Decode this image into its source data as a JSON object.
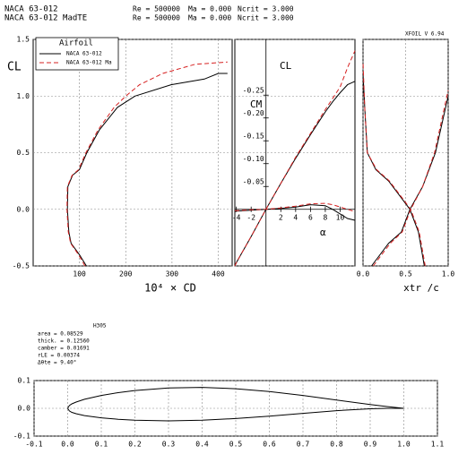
{
  "header": {
    "lines": [
      {
        "color": "#000000",
        "items": [
          "NACA 63-012",
          "Re = 500000",
          "Ma = 0.000",
          "Ncrit = 3.000"
        ]
      },
      {
        "color": "#d62020",
        "items": [
          "NACA 63-012 MadTE",
          "Re = 500000",
          "Ma = 0.000",
          "Ncrit = 3.000"
        ]
      }
    ],
    "version": "XFOIL V 6.94"
  },
  "chart_data": [
    {
      "type": "line",
      "xlabel": "10⁴ × CD",
      "ylabel": "CL",
      "xlim": [
        0,
        430
      ],
      "ylim": [
        -0.5,
        1.5
      ],
      "xticks": [
        100,
        200,
        300,
        400
      ],
      "yticks": [
        {
          "value": -0.5,
          "label": "-0.5"
        },
        {
          "value": 0,
          "label": "0.0"
        },
        {
          "value": 0.5,
          "label": "0.5"
        },
        {
          "value": 1,
          "label": "1.0"
        },
        {
          "value": 1.5,
          "label": "1.5"
        }
      ],
      "grid": true,
      "legend": "upper left",
      "legend_title": "Airfoil",
      "series": [
        {
          "name": "NACA 63-012",
          "color": "#000000",
          "dashed": false,
          "x": [
            115,
            100,
            82,
            77,
            74,
            75,
            85,
            100,
            116,
            143,
            182,
            220,
            298,
            370,
            400,
            420
          ],
          "values": [
            -0.5,
            -0.4,
            -0.3,
            -0.2,
            0,
            0.2,
            0.3,
            0.35,
            0.5,
            0.7,
            0.9,
            1.0,
            1.1,
            1.15,
            1.2,
            1.2
          ]
        },
        {
          "name": "NACA 63-012 Ma",
          "color": "#d62020",
          "dashed": true,
          "x": [
            112,
            98,
            81,
            76,
            73,
            74,
            84,
            98,
            114,
            140,
            175,
            200,
            230,
            280,
            350,
            420
          ],
          "values": [
            -0.5,
            -0.4,
            -0.3,
            -0.2,
            0,
            0.2,
            0.3,
            0.35,
            0.5,
            0.7,
            0.9,
            1.0,
            1.1,
            1.2,
            1.28,
            1.3
          ]
        }
      ]
    },
    {
      "type": "line",
      "xlabel": "α",
      "ylabel": "CL",
      "y2label": "CM",
      "xlim": [
        -4.2,
        12
      ],
      "ylim": [
        -0.5,
        1.5
      ],
      "xticks": [
        -4,
        -2,
        2,
        4,
        6,
        8,
        10
      ],
      "y2lim": [
        0.124,
        -0.372
      ],
      "y2ticks": [
        {
          "value": -0.25,
          "label": "-0.25"
        },
        {
          "value": -0.2,
          "label": "-0.20"
        },
        {
          "value": -0.15,
          "label": "-0.15"
        },
        {
          "value": -0.1,
          "label": "-0.10"
        },
        {
          "value": -0.05,
          "label": "-0.05"
        }
      ],
      "grid": false,
      "x": [
        -4.2,
        -4,
        -2,
        0,
        2,
        4,
        6,
        8,
        9,
        10,
        11,
        12
      ],
      "series": [
        {
          "color": "#000000",
          "dashed": false,
          "values": [
            -0.5,
            -0.47,
            -0.24,
            0,
            0.23,
            0.45,
            0.66,
            0.86,
            0.95,
            1.03,
            1.1,
            1.13
          ]
        },
        {
          "color": "#d62020",
          "dashed": true,
          "values": [
            -0.5,
            -0.47,
            -0.24,
            0,
            0.23,
            0.46,
            0.67,
            0.88,
            0.98,
            1.08,
            1.25,
            1.4
          ]
        },
        {
          "color": "#000000",
          "dashed": false,
          "axis": "y2",
          "values": [
            0.005,
            0.004,
            0.002,
            0,
            -0.002,
            -0.005,
            -0.01,
            -0.008,
            0,
            0.01,
            0.02,
            0.024
          ]
        },
        {
          "color": "#d62020",
          "dashed": true,
          "axis": "y2",
          "values": [
            0.003,
            0.003,
            0.001,
            0,
            -0.003,
            -0.007,
            -0.012,
            -0.013,
            -0.01,
            -0.005,
            0,
            0.005
          ]
        }
      ]
    },
    {
      "type": "line",
      "xlabel": "xtr /c",
      "xlim": [
        0,
        1
      ],
      "ylim": [
        -0.5,
        1.5
      ],
      "xticks": [
        {
          "value": 0,
          "label": "0.0"
        },
        0.5,
        {
          "value": 1,
          "label": "1.0"
        }
      ],
      "grid": true,
      "series": [
        {
          "color": "#000000",
          "dashed": false,
          "x": [
            0.72,
            0.65,
            0.55,
            0.45,
            0.3,
            0.15,
            0.05,
            0.02,
            0
          ],
          "values": [
            -0.5,
            -0.2,
            0,
            0.1,
            0.25,
            0.35,
            0.5,
            0.9,
            1.2
          ]
        },
        {
          "color": "#000000",
          "dashed": false,
          "x": [
            0.1,
            0.3,
            0.45,
            0.55,
            0.7,
            0.85,
            1.0
          ],
          "values": [
            -0.5,
            -0.3,
            -0.2,
            0,
            0.2,
            0.5,
            1.0
          ]
        },
        {
          "color": "#d62020",
          "dashed": true,
          "x": [
            0.73,
            0.66,
            0.56,
            0.46,
            0.31,
            0.16,
            0.05,
            0.02,
            0
          ],
          "values": [
            -0.5,
            -0.2,
            0,
            0.1,
            0.25,
            0.35,
            0.5,
            0.9,
            1.3
          ]
        },
        {
          "color": "#d62020",
          "dashed": true,
          "x": [
            0.12,
            0.32,
            0.46,
            0.56,
            0.7,
            0.84,
            1.0
          ],
          "values": [
            -0.5,
            -0.3,
            -0.2,
            0,
            0.2,
            0.5,
            1.05
          ]
        }
      ]
    },
    {
      "type": "line",
      "title": "H305",
      "annotations": [
        "area = 0.08529",
        "thick. = 0.12560",
        "camber = 0.01691",
        "rLE = 0.00374",
        "Δθte = 9.40°"
      ],
      "xlim": [
        -0.1,
        1.1
      ],
      "ylim": [
        -0.1,
        0.1
      ],
      "xticks": [
        -0.1,
        {
          "value": 0,
          "label": "0.0"
        },
        0.1,
        0.2,
        0.3,
        0.4,
        0.5,
        0.6,
        0.7,
        0.8,
        0.9,
        {
          "value": 1,
          "label": "1.0"
        },
        1.1
      ],
      "yticks": [
        -0.1,
        {
          "value": 0,
          "label": "0.0"
        },
        0.1
      ],
      "grid": true,
      "x": [
        0,
        0.005,
        0.0125,
        0.025,
        0.05,
        0.1,
        0.15,
        0.2,
        0.3,
        0.4,
        0.5,
        0.6,
        0.7,
        0.8,
        0.9,
        0.95,
        1
      ],
      "series": [
        {
          "color": "#000000",
          "dashed": false,
          "values": [
            0,
            0.0102,
            0.016,
            0.0227,
            0.0325,
            0.0465,
            0.0566,
            0.0642,
            0.0735,
            0.0754,
            0.0707,
            0.0607,
            0.0466,
            0.0301,
            0.0137,
            0.0063,
            0
          ]
        },
        {
          "color": "#000000",
          "dashed": false,
          "values": [
            0,
            -0.0095,
            -0.0144,
            -0.0194,
            -0.026,
            -0.0343,
            -0.0394,
            -0.0426,
            -0.0451,
            -0.043,
            -0.0369,
            -0.0283,
            -0.0182,
            -0.0085,
            -0.0015,
            0.0001,
            0
          ]
        }
      ]
    }
  ]
}
